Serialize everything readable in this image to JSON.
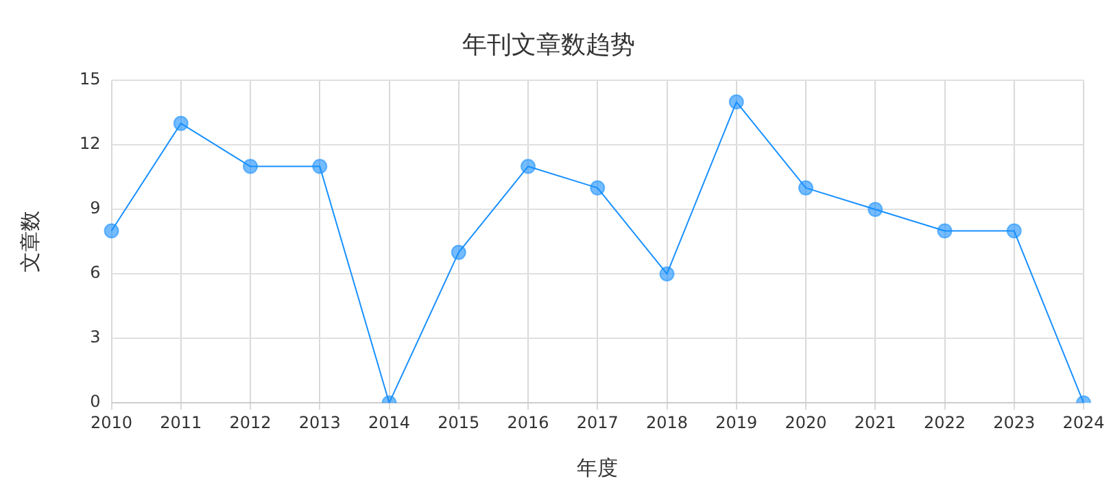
{
  "chart_data": {
    "type": "line",
    "title": "年刊文章数趋势",
    "xlabel": "年度",
    "ylabel": "文章数",
    "categories": [
      "2010",
      "2011",
      "2012",
      "2013",
      "2014",
      "2015",
      "2016",
      "2017",
      "2018",
      "2019",
      "2020",
      "2021",
      "2022",
      "2023",
      "2024"
    ],
    "series": [
      {
        "color": "#1890ff",
        "values": [
          8,
          13,
          11,
          11,
          0,
          7,
          11,
          10,
          6,
          14,
          10,
          9,
          8,
          8,
          0
        ]
      }
    ],
    "ylim": [
      0,
      15
    ],
    "yticks": [
      0,
      3,
      6,
      9,
      12,
      15
    ],
    "grid": true,
    "legend": false,
    "marker": "circle",
    "line_style": "solid"
  }
}
